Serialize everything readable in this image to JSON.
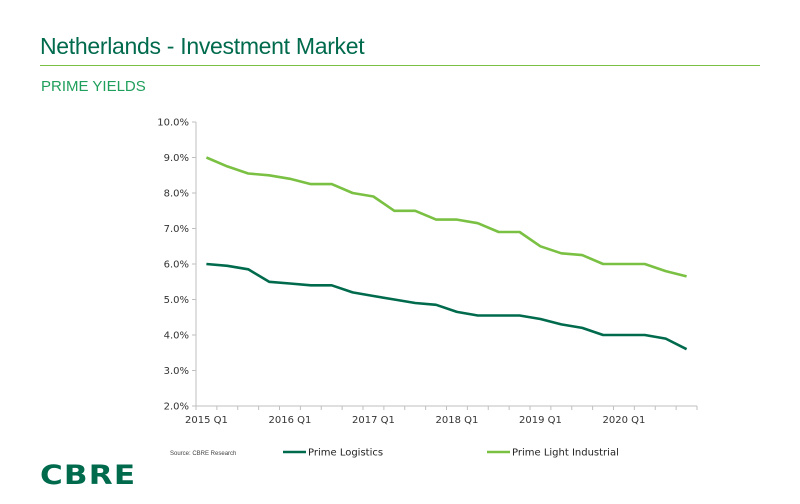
{
  "header": {
    "title": "Netherlands - Investment Market",
    "subtitle": "PRIME YIELDS"
  },
  "footer": {
    "source": "Source: CBRE Research",
    "logo": "CBRE"
  },
  "colors": {
    "brand": "#006A4D",
    "accent": "#7AC143"
  },
  "chart_data": {
    "type": "line",
    "title": "",
    "xlabel": "",
    "ylabel": "",
    "ylim": [
      2.0,
      10.0
    ],
    "yticks": [
      "2.0%",
      "3.0%",
      "4.0%",
      "5.0%",
      "6.0%",
      "7.0%",
      "8.0%",
      "9.0%",
      "10.0%"
    ],
    "ytick_values": [
      2,
      3,
      4,
      5,
      6,
      7,
      8,
      9,
      10
    ],
    "x": [
      "2015 Q1",
      "2015 Q2",
      "2015 Q3",
      "2015 Q4",
      "2016 Q1",
      "2016 Q2",
      "2016 Q3",
      "2016 Q4",
      "2017 Q1",
      "2017 Q2",
      "2017 Q3",
      "2017 Q4",
      "2018 Q1",
      "2018 Q2",
      "2018 Q3",
      "2018 Q4",
      "2019 Q1",
      "2019 Q2",
      "2019 Q3",
      "2019 Q4",
      "2020 Q1",
      "2020 Q2",
      "2020 Q3",
      "2020 Q4"
    ],
    "xtick_labels": [
      "2015 Q1",
      "2016 Q1",
      "2017 Q1",
      "2018 Q1",
      "2019 Q1",
      "2020 Q1"
    ],
    "xtick_label_indices": [
      0,
      4,
      8,
      12,
      16,
      20
    ],
    "grid": false,
    "legend_position": "bottom",
    "series": [
      {
        "name": "Prime Logistics",
        "color": "#006A4D",
        "values": [
          6.0,
          5.95,
          5.85,
          5.5,
          5.45,
          5.4,
          5.4,
          5.2,
          5.1,
          5.0,
          4.9,
          4.85,
          4.65,
          4.55,
          4.55,
          4.55,
          4.45,
          4.3,
          4.2,
          4.0,
          4.0,
          4.0,
          3.9,
          3.6
        ]
      },
      {
        "name": "Prime Light Industrial",
        "color": "#7AC143",
        "values": [
          9.0,
          8.75,
          8.55,
          8.5,
          8.4,
          8.25,
          8.25,
          8.0,
          7.9,
          7.5,
          7.5,
          7.25,
          7.25,
          7.15,
          6.9,
          6.9,
          6.5,
          6.3,
          6.25,
          6.0,
          6.0,
          6.0,
          5.8,
          5.65
        ]
      }
    ]
  }
}
